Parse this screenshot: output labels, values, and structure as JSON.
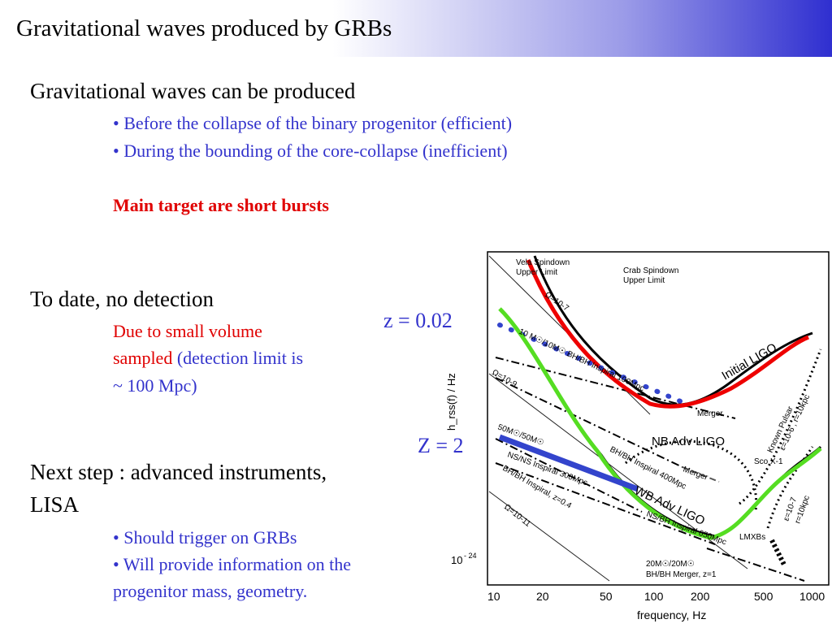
{
  "title": "Gravitational waves produced by GRBs",
  "section1": {
    "heading": "Gravitational waves can be produced",
    "bullets": [
      "• Before the collapse of the binary progenitor (efficient)",
      "• During the bounding of the core-collapse (inefficient)"
    ],
    "note": "Main target are short bursts"
  },
  "section2": {
    "heading": "To date, no detection",
    "line1": "Due to small volume",
    "line2_red": "sampled",
    "line2_blue": " (detection limit is",
    "line3": "~ 100 Mpc)"
  },
  "section3": {
    "heading_line1": "Next step : advanced instruments,",
    "heading_line2": "LISA",
    "bullets": [
      "• Should trigger on GRBs",
      "• Will provide information on the",
      "progenitor mass, geometry."
    ]
  },
  "figure": {
    "label_z1": "z = 0.02",
    "label_z2": "Z = 2",
    "ylabel": "h_rss(f) / Hz",
    "y_tick": "10",
    "y_tick_exp": "- 24",
    "xlabel": "frequency, Hz",
    "x_ticks": [
      "10",
      "20",
      "50",
      "100",
      "200",
      "500",
      "1000"
    ],
    "annotations": {
      "vela": "Vela Spindown",
      "vela_2": "Upper Limit",
      "crab": "Crab Spindown",
      "crab_2": "Upper Limit",
      "omega7": "Ω=10-7",
      "omega9": "Ω=10-9",
      "omega11": "Ω=10-11",
      "inspiral10": "10 M☉/10M☉ BH/BH Inspiral 100Mpc",
      "merger": "Merger",
      "merger2": "Merger",
      "initial_ligo": "Initial LIGO",
      "bh_inspiral_400": "BH/BH Inspiral 400Mpc",
      "nb_adv": "NB Adv LIGO",
      "mass50": "50M☉/50M☉",
      "bhbh_merger_2": "BH/BH Merger,",
      "nsns": "NS/NS Inspiral 300Mpc",
      "bhbh_z04": "BH/BH Inspiral, z=0.4",
      "wb_adv": "WB Adv LIGO",
      "nsbh_650": "NS/BH Inspiral 650Mpc",
      "sco": "Sco X-1",
      "lmxbs": "LMXBs",
      "known_pulsar": "Known Pulsar",
      "known_pulsar_2": "ε=10-6 , r=10kpc",
      "eps7": "ε=10-7",
      "eps7_2": "r=10kpc",
      "mass20": "20M☉/20M☉",
      "bhbh_z1": "BH/BH Merger, z=1"
    }
  },
  "colors": {
    "title_gradient_end": "#2f2fd0",
    "blue_text": "#3333cc",
    "red_text": "#e00000",
    "red_curve": "#ee0000",
    "green_curve": "#55dd22",
    "blue_line": "#3344cc"
  }
}
